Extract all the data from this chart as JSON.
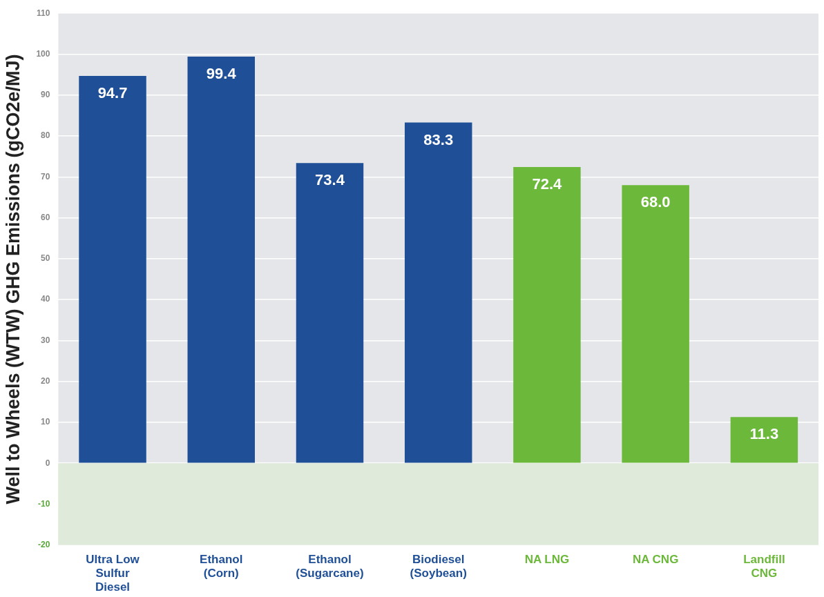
{
  "chart_data": {
    "type": "bar",
    "ylabel": "Well to Wheels (WTW) GHG Emissions (gCO2e/MJ)",
    "categories": [
      "Ultra Low Sulfur Diesel",
      "Ethanol (Corn)",
      "Ethanol (Sugarcane)",
      "Biodiesel (Soybean)",
      "NA LNG",
      "NA CNG",
      "Landfill CNG"
    ],
    "values": [
      94.7,
      99.4,
      73.4,
      83.3,
      72.4,
      68.0,
      11.3
    ],
    "colors": [
      "#1f4f96",
      "#1f4f96",
      "#1f4f96",
      "#1f4f96",
      "#6cb83a",
      "#6cb83a",
      "#6cb83a"
    ],
    "value_labels": [
      "94.7",
      "99.4",
      "73.4",
      "83.3",
      "72.4",
      "68.0",
      "11.3"
    ],
    "ylim": [
      -20,
      110
    ],
    "yticks": [
      -20,
      -10,
      0,
      10,
      20,
      30,
      40,
      50,
      60,
      70,
      80,
      90,
      100,
      110
    ],
    "bands": [
      {
        "axis": "y",
        "from": -20,
        "to": 0,
        "color": "#dfeadb"
      }
    ],
    "grid": "y"
  }
}
